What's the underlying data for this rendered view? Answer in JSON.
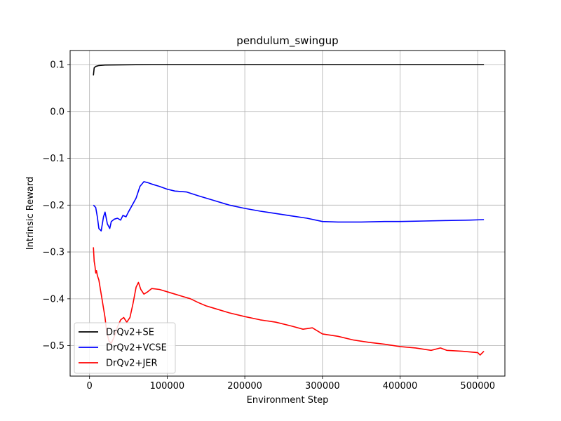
{
  "chart_data": {
    "type": "line",
    "title": "pendulum_swingup",
    "xlabel": "Environment Step",
    "ylabel": "Intrinsic  Reward",
    "xlim": [
      -25000,
      535000
    ],
    "ylim": [
      -0.565,
      0.13
    ],
    "xticks": [
      0,
      100000,
      200000,
      300000,
      400000,
      500000
    ],
    "xtick_labels": [
      "0",
      "100000",
      "200000",
      "300000",
      "400000",
      "500000"
    ],
    "yticks": [
      0.1,
      0.0,
      -0.1,
      -0.2,
      -0.3,
      -0.4,
      -0.5
    ],
    "ytick_labels": [
      "0.1",
      "0.0",
      "−0.1",
      "−0.2",
      "−0.3",
      "−0.4",
      "−0.5"
    ],
    "grid": true,
    "legend_position": "lower-left",
    "series": [
      {
        "name": "DrQv2+SE",
        "color": "#000000",
        "x": [
          5000,
          6000,
          8000,
          12000,
          20000,
          40000,
          80000,
          150000,
          300000,
          500000,
          508000
        ],
        "y": [
          0.077,
          0.093,
          0.096,
          0.098,
          0.099,
          0.0995,
          0.1,
          0.1,
          0.1,
          0.1,
          0.1
        ]
      },
      {
        "name": "DrQv2+VCSE",
        "color": "#0000ff",
        "x": [
          5000,
          8000,
          10000,
          12000,
          15000,
          18000,
          20000,
          23000,
          26000,
          28000,
          32000,
          36000,
          40000,
          43000,
          47000,
          50000,
          55000,
          60000,
          65000,
          70000,
          75000,
          80000,
          90000,
          100000,
          110000,
          125000,
          140000,
          160000,
          180000,
          200000,
          220000,
          240000,
          260000,
          280000,
          300000,
          320000,
          350000,
          380000,
          400000,
          430000,
          460000,
          490000,
          508000
        ],
        "y": [
          -0.2,
          -0.205,
          -0.225,
          -0.25,
          -0.255,
          -0.225,
          -0.215,
          -0.24,
          -0.25,
          -0.235,
          -0.23,
          -0.228,
          -0.232,
          -0.222,
          -0.225,
          -0.215,
          -0.2,
          -0.185,
          -0.16,
          -0.15,
          -0.152,
          -0.155,
          -0.16,
          -0.166,
          -0.17,
          -0.172,
          -0.18,
          -0.19,
          -0.2,
          -0.207,
          -0.213,
          -0.218,
          -0.223,
          -0.228,
          -0.235,
          -0.236,
          -0.236,
          -0.235,
          -0.235,
          -0.234,
          -0.233,
          -0.232,
          -0.231
        ]
      },
      {
        "name": "DrQv2+JER",
        "color": "#ff0000",
        "x": [
          5000,
          6000,
          7000,
          8000,
          9000,
          10000,
          12000,
          14000,
          16000,
          18000,
          20000,
          22000,
          25000,
          28000,
          32000,
          36000,
          40000,
          44000,
          48000,
          52000,
          56000,
          60000,
          63000,
          66000,
          70000,
          75000,
          80000,
          90000,
          100000,
          110000,
          120000,
          130000,
          140000,
          150000,
          160000,
          180000,
          200000,
          220000,
          240000,
          260000,
          275000,
          287000,
          300000,
          320000,
          340000,
          360000,
          380000,
          400000,
          420000,
          440000,
          452000,
          460000,
          480000,
          500000,
          503000,
          508000
        ],
        "y": [
          -0.29,
          -0.32,
          -0.33,
          -0.345,
          -0.34,
          -0.35,
          -0.36,
          -0.38,
          -0.4,
          -0.42,
          -0.44,
          -0.47,
          -0.49,
          -0.495,
          -0.48,
          -0.46,
          -0.445,
          -0.44,
          -0.45,
          -0.44,
          -0.41,
          -0.375,
          -0.365,
          -0.38,
          -0.39,
          -0.385,
          -0.378,
          -0.38,
          -0.385,
          -0.39,
          -0.395,
          -0.4,
          -0.408,
          -0.415,
          -0.42,
          -0.43,
          -0.438,
          -0.445,
          -0.45,
          -0.458,
          -0.465,
          -0.462,
          -0.475,
          -0.48,
          -0.488,
          -0.493,
          -0.497,
          -0.502,
          -0.505,
          -0.51,
          -0.505,
          -0.51,
          -0.512,
          -0.515,
          -0.52,
          -0.512
        ]
      }
    ]
  }
}
